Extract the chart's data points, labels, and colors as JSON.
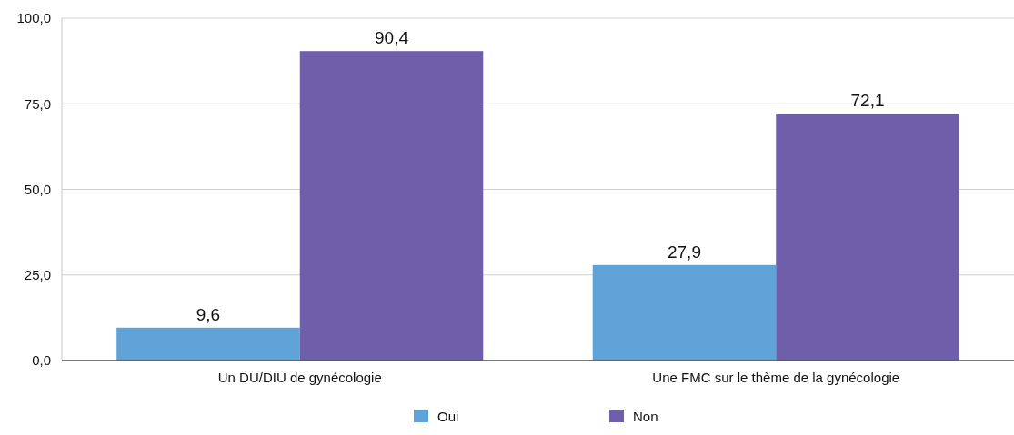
{
  "chart_data": {
    "type": "bar",
    "categories": [
      "Un DU/DIU de gynécologie",
      "Une FMC sur le thème de la gynécologie"
    ],
    "series": [
      {
        "name": "Oui",
        "color": "#5fa3d9",
        "values": [
          9.6,
          27.9
        ],
        "value_labels": [
          "9,6",
          "27,9"
        ]
      },
      {
        "name": "Non",
        "color": "#6f5fab",
        "values": [
          90.4,
          72.1
        ],
        "value_labels": [
          "90,4",
          "72,1"
        ]
      }
    ],
    "ylim": [
      0,
      100
    ],
    "yticks": [
      {
        "value": 0,
        "label": "0,0"
      },
      {
        "value": 25,
        "label": "25,0"
      },
      {
        "value": 50,
        "label": "50,0"
      },
      {
        "value": 75,
        "label": "75,0"
      },
      {
        "value": 100,
        "label": "100,0"
      }
    ],
    "grid": "y",
    "legend": "bottom"
  }
}
